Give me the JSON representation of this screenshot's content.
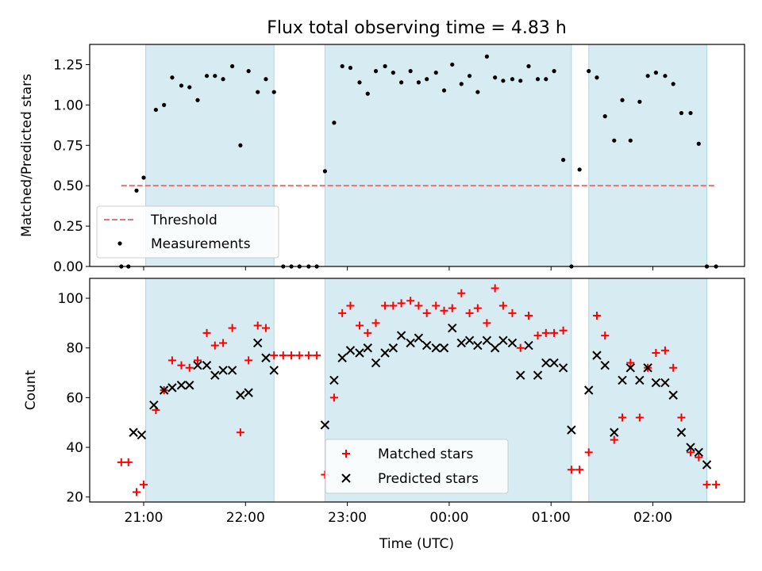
{
  "title": "Flux total observing time = 4.83 h",
  "chart_data": [
    {
      "type": "scatter",
      "ylabel": "Matched/Predicted stars",
      "xlim": [
        20.47,
        26.9
      ],
      "ylim": [
        0.0,
        1.375
      ],
      "yticks": [
        0.0,
        0.25,
        0.5,
        0.75,
        1.0,
        1.25
      ],
      "ytick_labels": [
        "0.00",
        "0.25",
        "0.50",
        "0.75",
        "1.00",
        "1.25"
      ],
      "shaded_ranges": [
        [
          21.02,
          22.28
        ],
        [
          22.78,
          25.2
        ],
        [
          25.37,
          26.53
        ]
      ],
      "threshold": {
        "name": "Threshold",
        "value": 0.5,
        "x_range": [
          20.78,
          26.62
        ],
        "color": "#f07070"
      },
      "legend": {
        "position": "lower left"
      },
      "series": [
        {
          "name": "Measurements",
          "color": "#000000",
          "x": [
            20.78,
            20.85,
            20.93,
            21.0,
            21.12,
            21.2,
            21.28,
            21.37,
            21.45,
            21.53,
            21.62,
            21.7,
            21.78,
            21.87,
            21.95,
            22.03,
            22.12,
            22.2,
            22.28,
            22.37,
            22.45,
            22.53,
            22.62,
            22.7,
            22.78,
            22.87,
            22.95,
            23.03,
            23.12,
            23.2,
            23.28,
            23.37,
            23.45,
            23.53,
            23.62,
            23.7,
            23.78,
            23.87,
            23.95,
            24.03,
            24.12,
            24.2,
            24.28,
            24.37,
            24.45,
            24.53,
            24.62,
            24.7,
            24.78,
            24.87,
            24.95,
            25.03,
            25.12,
            25.2,
            25.28,
            25.37,
            25.45,
            25.53,
            25.62,
            25.7,
            25.78,
            25.87,
            25.95,
            26.03,
            26.12,
            26.2,
            26.28,
            26.37,
            26.45,
            26.53,
            26.62
          ],
          "y": [
            0.0,
            0.0,
            0.47,
            0.55,
            0.97,
            1.0,
            1.17,
            1.12,
            1.11,
            1.03,
            1.18,
            1.18,
            1.16,
            1.24,
            0.75,
            1.21,
            1.08,
            1.16,
            1.08,
            0.0,
            0.0,
            0.0,
            0.0,
            0.0,
            0.59,
            0.89,
            1.24,
            1.23,
            1.14,
            1.07,
            1.21,
            1.24,
            1.2,
            1.14,
            1.21,
            1.14,
            1.16,
            1.2,
            1.09,
            1.25,
            1.13,
            1.18,
            1.08,
            1.3,
            1.17,
            1.15,
            1.16,
            1.15,
            1.24,
            1.16,
            1.16,
            1.21,
            0.66,
            0.0,
            0.6,
            1.21,
            1.17,
            0.93,
            0.78,
            1.03,
            0.78,
            1.02,
            1.18,
            1.2,
            1.18,
            1.13,
            0.95,
            0.95,
            0.76,
            0.0,
            0.0
          ]
        }
      ]
    },
    {
      "type": "scatter",
      "xlabel": "Time (UTC)",
      "ylabel": "Count",
      "xlim": [
        20.47,
        26.9
      ],
      "ylim": [
        18.0,
        108.0
      ],
      "xticks": [
        21,
        22,
        23,
        24,
        25,
        26
      ],
      "xtick_labels": [
        "21:00",
        "22:00",
        "23:00",
        "00:00",
        "01:00",
        "02:00"
      ],
      "yticks": [
        20,
        40,
        60,
        80,
        100
      ],
      "ytick_labels": [
        "20",
        "40",
        "60",
        "80",
        "100"
      ],
      "shaded_ranges": [
        [
          21.02,
          22.28
        ],
        [
          22.78,
          25.2
        ],
        [
          25.37,
          26.53
        ]
      ],
      "legend": {
        "position": "lower center"
      },
      "series": [
        {
          "name": "Matched stars",
          "marker": "plus",
          "color": "#ff0000",
          "x": [
            20.78,
            20.85,
            20.93,
            21.0,
            21.12,
            21.2,
            21.28,
            21.37,
            21.45,
            21.53,
            21.62,
            21.7,
            21.78,
            21.87,
            21.95,
            22.03,
            22.12,
            22.2,
            22.28,
            22.37,
            22.45,
            22.53,
            22.62,
            22.7,
            22.78,
            22.87,
            22.95,
            23.03,
            23.12,
            23.2,
            23.28,
            23.37,
            23.45,
            23.53,
            23.62,
            23.7,
            23.78,
            23.87,
            23.95,
            24.03,
            24.12,
            24.2,
            24.28,
            24.37,
            24.45,
            24.53,
            24.62,
            24.7,
            24.78,
            24.87,
            24.95,
            25.03,
            25.12,
            25.2,
            25.28,
            25.37,
            25.45,
            25.53,
            25.62,
            25.7,
            25.78,
            25.87,
            25.95,
            26.03,
            26.12,
            26.2,
            26.28,
            26.37,
            26.45,
            26.53,
            26.62
          ],
          "y": [
            34,
            34,
            22,
            25,
            55,
            63,
            75,
            73,
            72,
            75,
            86,
            81,
            82,
            88,
            46,
            75,
            89,
            88,
            77,
            77,
            77,
            77,
            77,
            77,
            29,
            60,
            94,
            97,
            89,
            86,
            90,
            97,
            97,
            98,
            99,
            97,
            94,
            97,
            95,
            96,
            102,
            94,
            96,
            90,
            104,
            97,
            94,
            80,
            93,
            85,
            86,
            86,
            87,
            31,
            31,
            38,
            93,
            85,
            43,
            52,
            74,
            52,
            72,
            78,
            79,
            72,
            52,
            38,
            36,
            25,
            25
          ]
        },
        {
          "name": "Predicted stars",
          "marker": "x",
          "color": "#000000",
          "x": [
            20.9,
            20.98,
            21.1,
            21.2,
            21.28,
            21.37,
            21.45,
            21.53,
            21.62,
            21.7,
            21.78,
            21.87,
            21.95,
            22.03,
            22.12,
            22.2,
            22.28,
            22.78,
            22.87,
            22.95,
            23.03,
            23.12,
            23.2,
            23.28,
            23.37,
            23.45,
            23.53,
            23.62,
            23.7,
            23.78,
            23.87,
            23.95,
            24.03,
            24.12,
            24.2,
            24.28,
            24.37,
            24.45,
            24.53,
            24.62,
            24.7,
            24.78,
            24.87,
            24.95,
            25.03,
            25.12,
            25.2,
            25.37,
            25.45,
            25.53,
            25.62,
            25.7,
            25.78,
            25.87,
            25.95,
            26.03,
            26.12,
            26.2,
            26.28,
            26.37,
            26.45,
            26.53
          ],
          "y": [
            46,
            45,
            57,
            63,
            64,
            65,
            65,
            73,
            73,
            69,
            71,
            71,
            61,
            62,
            82,
            76,
            71,
            49,
            67,
            76,
            79,
            78,
            80,
            74,
            78,
            80,
            85,
            82,
            84,
            81,
            80,
            80,
            88,
            82,
            83,
            81,
            83,
            80,
            83,
            82,
            69,
            81,
            69,
            74,
            74,
            72,
            47,
            63,
            77,
            73,
            46,
            67,
            72,
            67,
            72,
            66,
            66,
            61,
            46,
            40,
            38,
            33
          ]
        }
      ]
    }
  ]
}
